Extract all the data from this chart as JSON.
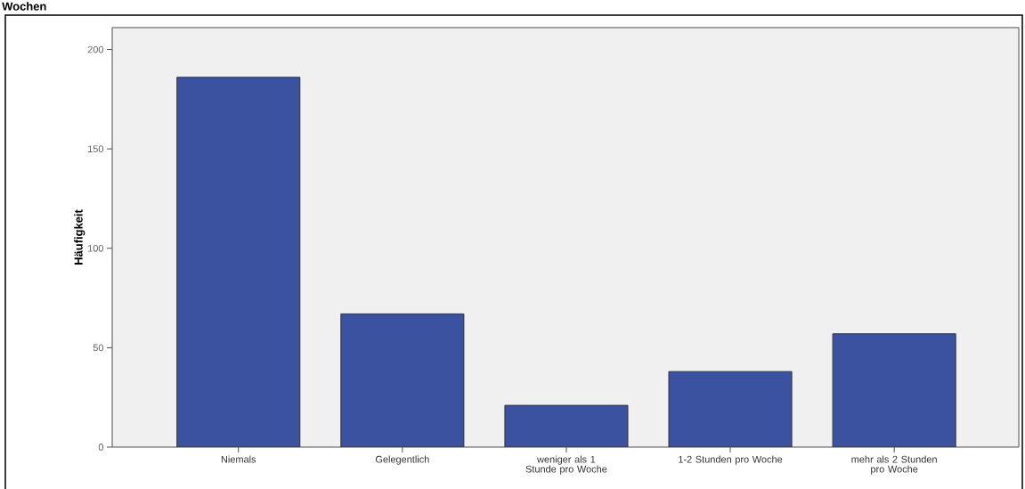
{
  "chart_data": {
    "type": "bar",
    "title": "Wochen",
    "ylabel": "Häufigkeit",
    "categories": [
      "Niemals",
      "Gelegentlich",
      "weniger als 1 Stunde pro Woche",
      "1-2 Stunden pro Woche",
      "mehr als 2 Stunden pro Woche"
    ],
    "values": [
      186,
      67,
      21,
      38,
      57
    ],
    "color": "#3a52a0",
    "ylim": [
      0,
      211
    ],
    "yticks": [
      0,
      50,
      100,
      150,
      200
    ]
  }
}
